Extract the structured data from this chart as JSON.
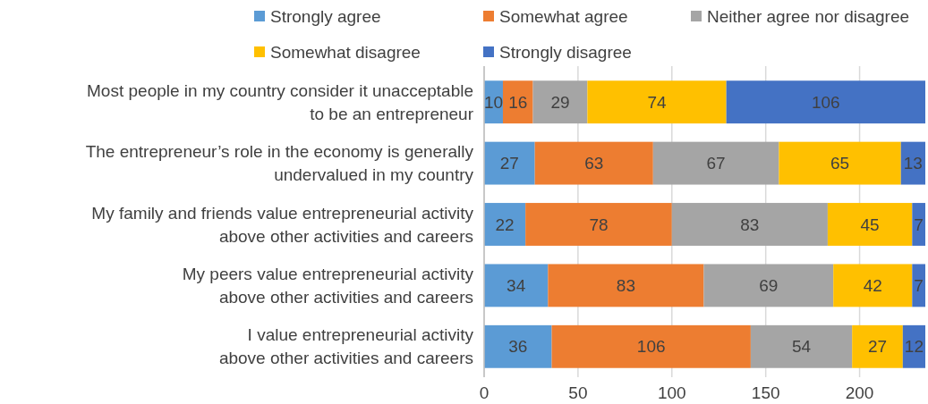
{
  "chart_data": {
    "type": "bar",
    "orientation": "horizontal",
    "stacked": true,
    "categories": [
      "Most people in my country consider it unacceptable\nto be an entrepreneur",
      "The entrepreneur’s role in the economy is generally\nundervalued in my country",
      "My family and friends value entrepreneurial activity\nabove other activities and careers",
      "My peers value entrepreneurial activity\nabove other activities and careers",
      "I value entrepreneurial activity\nabove other activities and careers"
    ],
    "series": [
      {
        "name": "Strongly agree",
        "color": "#5b9bd5",
        "values": [
          10,
          27,
          22,
          34,
          36
        ]
      },
      {
        "name": "Somewhat agree",
        "color": "#ed7d31",
        "values": [
          16,
          63,
          78,
          83,
          106
        ]
      },
      {
        "name": "Neither agree nor disagree",
        "color": "#a5a5a5",
        "values": [
          29,
          67,
          83,
          69,
          54
        ]
      },
      {
        "name": "Somewhat disagree",
        "color": "#ffc000",
        "values": [
          74,
          65,
          45,
          42,
          27
        ]
      },
      {
        "name": "Strongly disagree",
        "color": "#4472c4",
        "values": [
          106,
          13,
          7,
          7,
          12
        ]
      }
    ],
    "xlim": [
      0,
      235
    ],
    "xticks": [
      0,
      50,
      100,
      150,
      200
    ],
    "grid": "x",
    "legend": "top",
    "data_labels": true
  }
}
